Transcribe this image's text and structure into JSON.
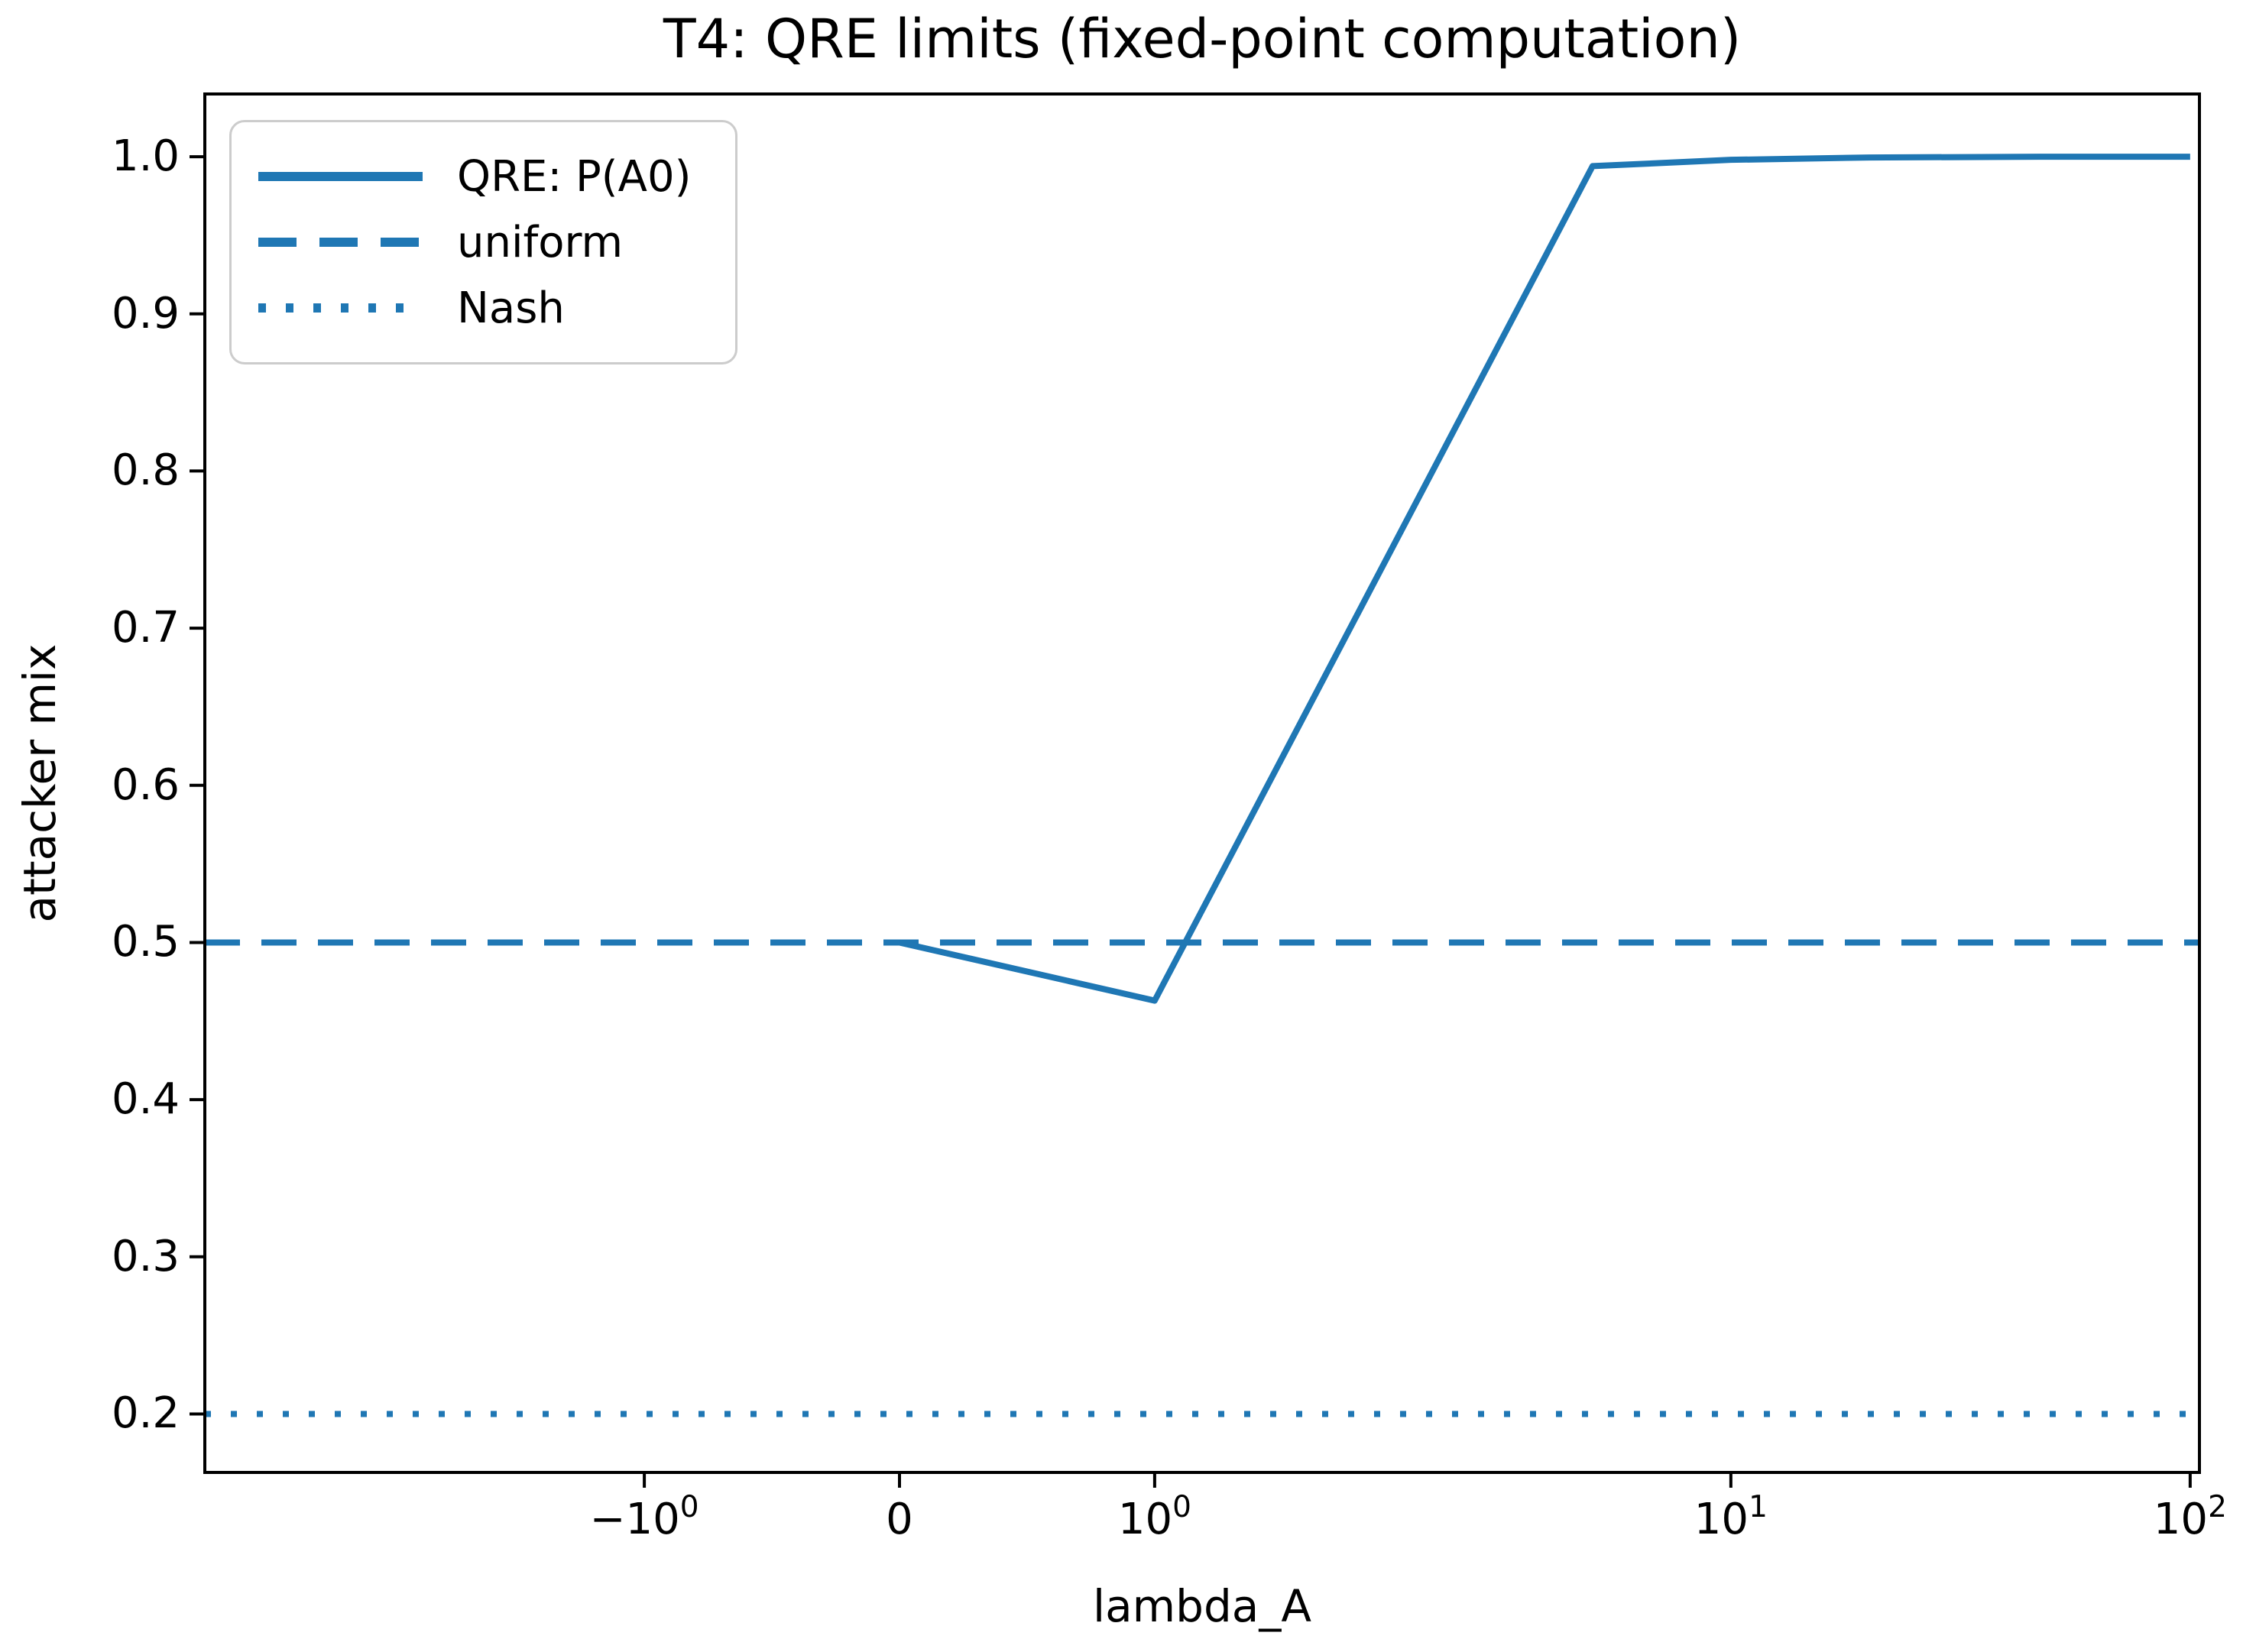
{
  "figure": {
    "title": "T4: QRE limits (fixed-point computation)",
    "xlabel": "lambda_A",
    "ylabel": "attacker mix"
  },
  "legend": {
    "position": "upper left",
    "entries": [
      {
        "label": "QRE: P(A0)",
        "style": "solid"
      },
      {
        "label": "uniform",
        "style": "dashed"
      },
      {
        "label": "Nash",
        "style": "dotted"
      }
    ]
  },
  "colors": {
    "line": "#1f77b4",
    "axis": "#000000",
    "background": "#ffffff",
    "legend_border": "#cccccc"
  },
  "chart_data": {
    "type": "line",
    "title": "T4: QRE limits (fixed-point computation)",
    "xlabel": "lambda_A",
    "ylabel": "attacker mix",
    "x_scale": "symlog",
    "symlog_linthresh": 2,
    "grid": false,
    "legend_position": "upper left",
    "x": [
      0,
      1,
      5,
      10,
      20,
      50,
      100
    ],
    "series": [
      {
        "name": "QRE: P(A0)",
        "style": "solid",
        "values": [
          0.5,
          0.463,
          0.994,
          0.998,
          0.9995,
          1.0,
          1.0
        ]
      }
    ],
    "reference_lines": [
      {
        "name": "uniform",
        "style": "dashed",
        "y": 0.5
      },
      {
        "name": "Nash",
        "style": "dotted",
        "y": 0.2
      }
    ],
    "ylim": [
      0.1628,
      1.0399
    ],
    "y_ticks": [
      "1.0",
      "0.9",
      "0.8",
      "0.7",
      "0.6",
      "0.5",
      "0.4",
      "0.3",
      "0.2"
    ],
    "y_tick_values": [
      1.0,
      0.9,
      0.8,
      0.7,
      0.6,
      0.5,
      0.4,
      0.3,
      0.2
    ],
    "x_ticks": [
      {
        "base": "−10",
        "sup": "0",
        "x": -1
      },
      {
        "base": "0",
        "sup": "",
        "x": 0
      },
      {
        "base": "10",
        "sup": "0",
        "x": 1
      },
      {
        "base": "10",
        "sup": "1",
        "x": 10
      },
      {
        "base": "10",
        "sup": "2",
        "x": 100
      }
    ]
  }
}
